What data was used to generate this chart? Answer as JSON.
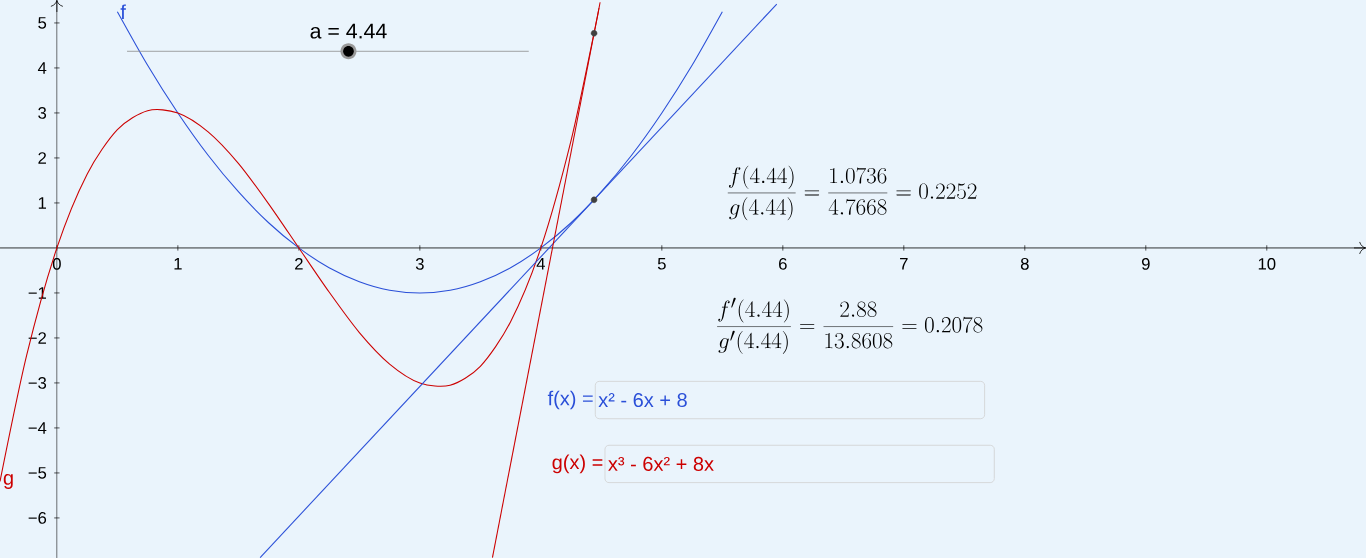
{
  "chart_data": {
    "type": "line",
    "xlim": [
      -0.47,
      10.82
    ],
    "ylim": [
      -6.89,
      5.51
    ],
    "xticks": [
      0,
      1,
      2,
      3,
      4,
      5,
      6,
      7,
      8,
      9,
      10
    ],
    "yticks": [
      {
        "value": -6,
        "label": "−6"
      },
      {
        "value": -5,
        "label": "−5"
      },
      {
        "value": -4,
        "label": "−4"
      },
      {
        "value": -3,
        "label": "−3"
      },
      {
        "value": -2,
        "label": "−2"
      },
      {
        "value": -1,
        "label": "−1"
      },
      1,
      2,
      3,
      4,
      5
    ],
    "series": [
      {
        "name": "f",
        "color": "#2a4fd8",
        "x": [
          0.5,
          0.75,
          1,
          1.25,
          1.5,
          1.75,
          2,
          2.25,
          2.5,
          2.75,
          3,
          3.25,
          3.5,
          3.75,
          4,
          4.25,
          4.5,
          4.75,
          5,
          5.25,
          5.5
        ],
        "values": [
          5.25,
          4.06,
          3,
          2.06,
          1.25,
          0.56,
          0,
          -0.44,
          -0.75,
          -0.94,
          -1,
          -0.94,
          -0.75,
          -0.44,
          0,
          0.56,
          1.25,
          2.06,
          3,
          4.06,
          5.25
        ]
      },
      {
        "name": "g",
        "color": "#cc0000",
        "x": [
          -0.47,
          -0.25,
          0,
          0.25,
          0.5,
          0.75,
          1,
          1.25,
          1.5,
          1.75,
          2,
          2.25,
          2.5,
          2.75,
          3,
          3.25,
          3.5,
          3.75,
          4,
          4.25,
          4.45,
          4.48
        ],
        "values": [
          -5.19,
          -2.39,
          0,
          1.64,
          2.63,
          3.05,
          3,
          2.58,
          1.88,
          0.98,
          0,
          -0.98,
          -1.88,
          -2.58,
          -3,
          -3.05,
          -2.63,
          -1.64,
          0,
          2.39,
          4.91,
          5.33
        ]
      },
      {
        "color": "#2a4fd8",
        "x": [
          1.68,
          5.95
        ],
        "values": [
          -6.88,
          5.42
        ]
      },
      {
        "color": "#cc0000",
        "x": [
          3.6,
          4.49
        ],
        "values": [
          -6.88,
          5.46
        ]
      },
      {
        "type": "scatter",
        "marker": "circle",
        "color": "#404040",
        "x": [
          4.44,
          4.44
        ],
        "values": [
          1.07,
          4.77
        ]
      }
    ],
    "annotations": [
      "a = 4.44",
      "\\frac{f(4.44)}{g(4.44)} = \\frac{1.0736}{4.7668} = 0.2252",
      "\\frac{f'(4.44)}{g'(4.44)} = \\frac{2.88}{13.8608} = 0.2078",
      "f(x) =",
      "x² - 6x + 8",
      "g(x) =",
      "x³ - 6x² + 8x"
    ]
  }
}
